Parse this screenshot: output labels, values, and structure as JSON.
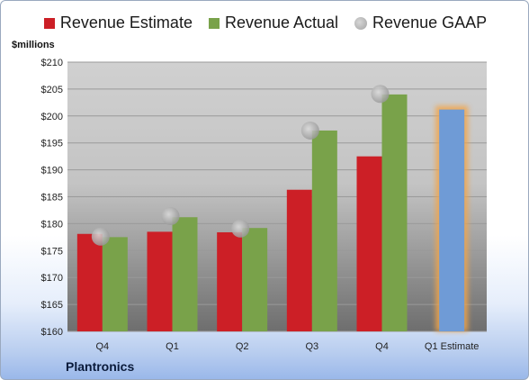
{
  "company": "Plantronics",
  "chart_data": {
    "type": "bar",
    "title": "",
    "ylabel": "$millions",
    "xlabel": "",
    "ylim": [
      160,
      210
    ],
    "ytick_step": 5,
    "ytick_prefix": "$",
    "grid": true,
    "legend_position": "top-center",
    "categories": [
      "Q4",
      "Q1",
      "Q2",
      "Q3",
      "Q4",
      "Q1 Estimate"
    ],
    "series": [
      {
        "name": "Revenue Estimate",
        "kind": "bar",
        "color": "#cc1f26",
        "values": [
          178.1,
          178.5,
          178.4,
          186.3,
          192.5,
          null
        ]
      },
      {
        "name": "Revenue Actual",
        "kind": "bar",
        "color": "#79a24a",
        "values": [
          177.5,
          181.2,
          179.2,
          197.3,
          204.0,
          null
        ]
      },
      {
        "name": "Revenue GAAP",
        "kind": "point",
        "color": "#b3b3b3",
        "values": [
          177.6,
          181.4,
          179.1,
          197.3,
          204.1,
          null
        ]
      },
      {
        "name": "",
        "kind": "estimate-bar",
        "color": "#6f9bd6",
        "glow": "#f2a54a",
        "values": [
          null,
          null,
          null,
          null,
          null,
          201.2
        ]
      }
    ]
  }
}
